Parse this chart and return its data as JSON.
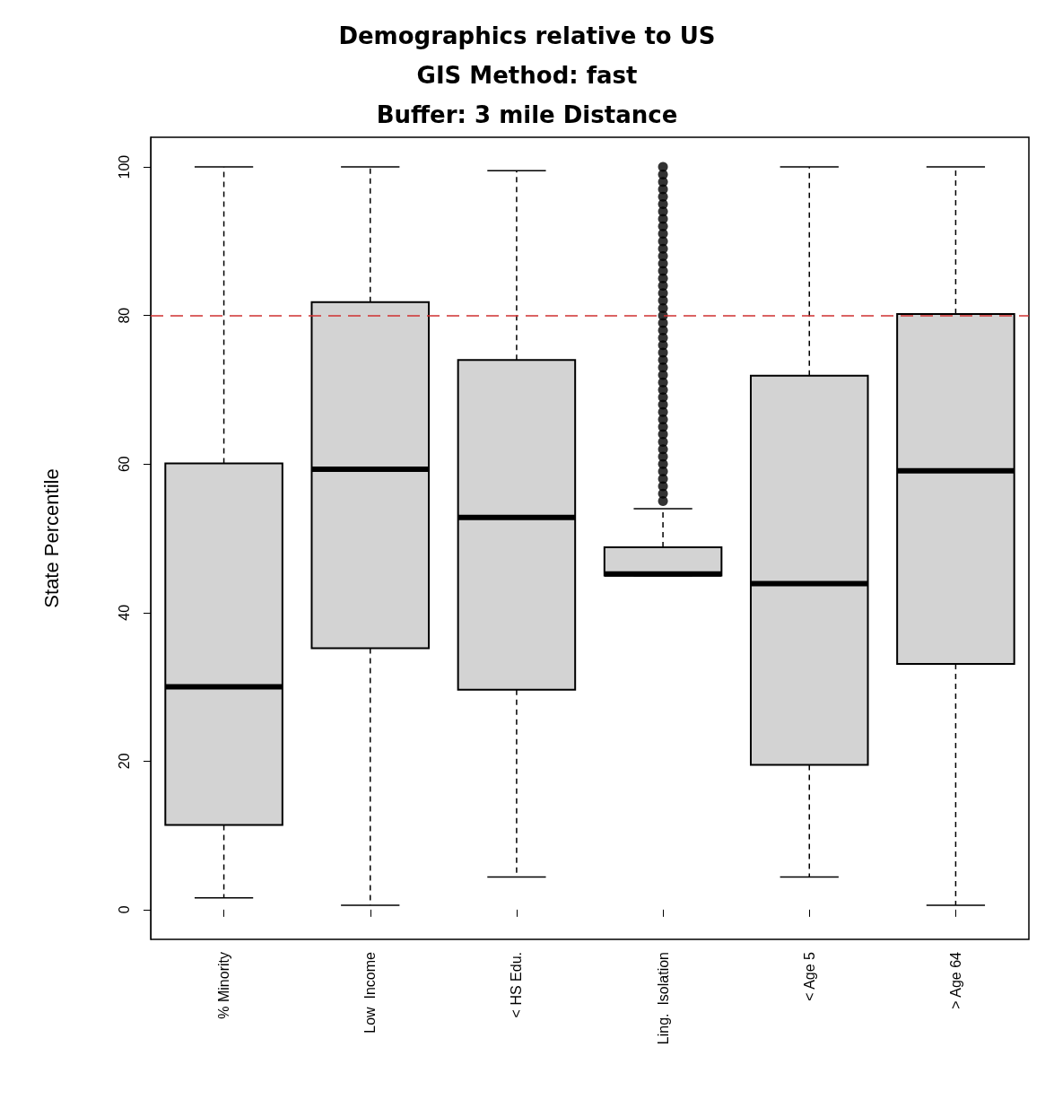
{
  "chart_data": {
    "type": "box",
    "title": "Demographics relative to US\nGIS Method: fast\nBuffer: 3 mile Distance",
    "ylabel": "State Percentile",
    "categories": [
      "% Minority",
      "Low  Income",
      "< HS Edu.",
      "Ling.  Isolation",
      "< Age 5",
      "> Age 64"
    ],
    "color": "#d3d3d3",
    "boxes": [
      {
        "low": 1.6,
        "q1": 11.4,
        "median": 30,
        "q3": 60.1,
        "high": 100
      },
      {
        "low": 0.6,
        "q1": 35.2,
        "median": 59.3,
        "q3": 81.8,
        "high": 100
      },
      {
        "low": 4.4,
        "q1": 29.6,
        "median": 52.8,
        "q3": 74,
        "high": 99.5
      },
      {
        "low": 45,
        "q1": 45,
        "median": 45.2,
        "q3": 48.8,
        "high": 54,
        "outliers": [
          55,
          56,
          57,
          58,
          59,
          60,
          61,
          62,
          63,
          64,
          65,
          66,
          67,
          68,
          69,
          70,
          71,
          72,
          73,
          74,
          75,
          76,
          77,
          78,
          79,
          80,
          81,
          82,
          83,
          84,
          85,
          86,
          87,
          88,
          89,
          90,
          91,
          92,
          93,
          94,
          95,
          96,
          97,
          98,
          99,
          100
        ]
      },
      {
        "low": 4.4,
        "q1": 19.5,
        "median": 43.9,
        "q3": 71.9,
        "high": 100
      },
      {
        "low": 0.6,
        "q1": 33.1,
        "median": 59.1,
        "q3": 80.2,
        "high": 100
      }
    ],
    "ylim": [
      -4,
      104
    ],
    "yticks": [
      0,
      20,
      40,
      60,
      80,
      100
    ],
    "grid": false,
    "ref_lines": [
      {
        "axis": "y",
        "value": 80,
        "color": "#d03030",
        "line_style": "dashed"
      }
    ]
  }
}
